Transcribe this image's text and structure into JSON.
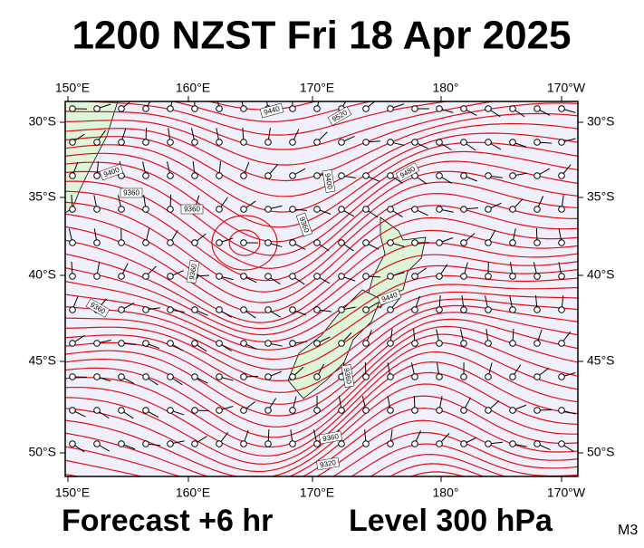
{
  "title": "1200 NZST Fri 18 Apr 2025",
  "longitude_labels": [
    "150°E",
    "160°E",
    "170°E",
    "180°",
    "170°W"
  ],
  "latitude_labels": [
    "30°S",
    "35°S",
    "40°S",
    "45°S",
    "50°S"
  ],
  "contour_labels": [
    "9440",
    "9520",
    "9480",
    "9400",
    "9360",
    "9360",
    "9360",
    "9400",
    "9360",
    "9360",
    "9440",
    "9360",
    "9360",
    "9320"
  ],
  "footer": {
    "forecast": "Forecast +6 hr",
    "level": "Level 300 hPa",
    "code": "M3"
  }
}
